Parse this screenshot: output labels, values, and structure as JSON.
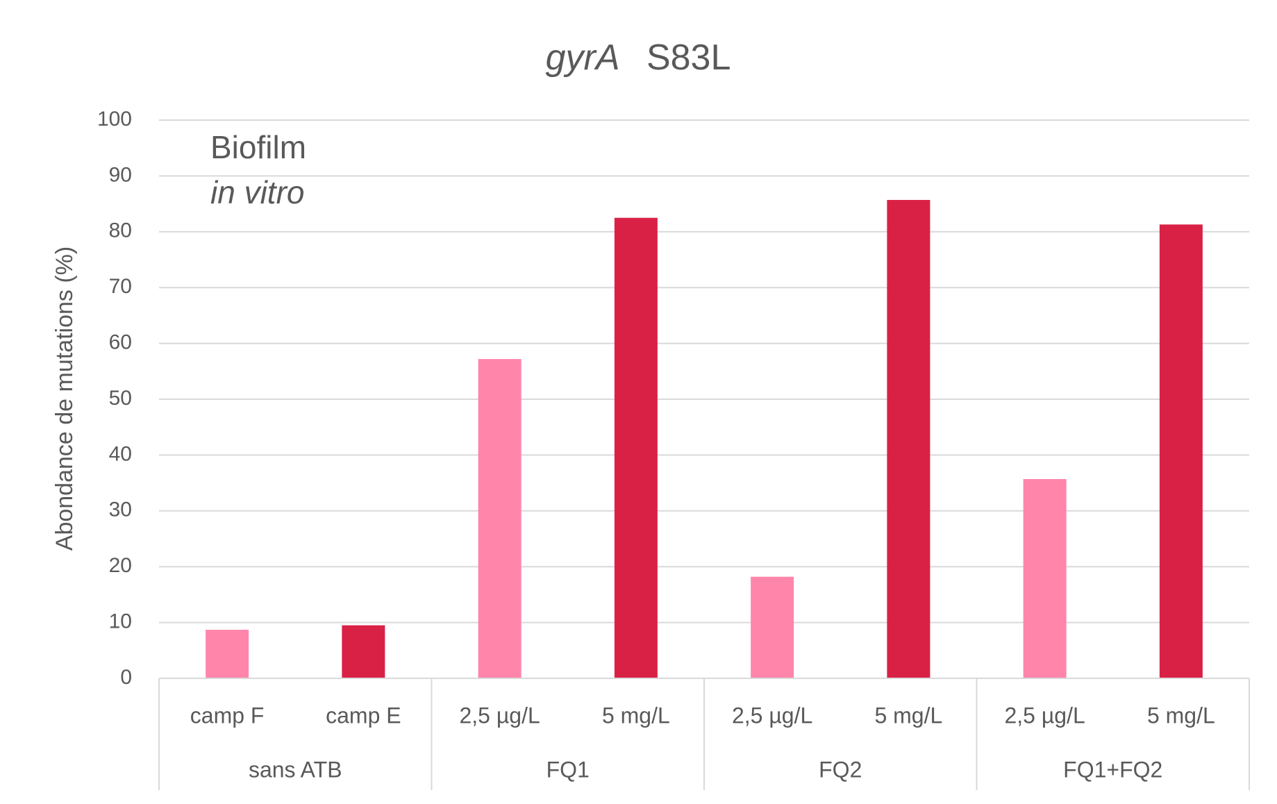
{
  "chart_data": {
    "type": "bar",
    "title": {
      "gene": "gyrA",
      "mutation": "S83L"
    },
    "ylabel": "Abondance de mutations (%)",
    "xlabel": "",
    "ylim": [
      0,
      100
    ],
    "yticks": [
      0,
      10,
      20,
      30,
      40,
      50,
      60,
      70,
      80,
      90,
      100
    ],
    "grid": true,
    "annotation": {
      "line1": "Biofilm",
      "line2": "in vitro"
    },
    "groups": [
      {
        "label": "sans ATB",
        "categories": [
          "camp F",
          "camp E"
        ]
      },
      {
        "label": "FQ1",
        "categories": [
          "2,5 µg/L",
          "5 mg/L"
        ]
      },
      {
        "label": "FQ2",
        "categories": [
          "2,5 µg/L",
          "5 mg/L"
        ]
      },
      {
        "label": "FQ1+FQ2",
        "categories": [
          "2,5 µg/L",
          "5 mg/L"
        ]
      }
    ],
    "categories": [
      "camp F",
      "camp E",
      "2,5 µg/L",
      "5 mg/L",
      "2,5 µg/L",
      "5 mg/L",
      "2,5 µg/L",
      "5 mg/L"
    ],
    "values": [
      8.7,
      9.5,
      57.2,
      82.5,
      18.2,
      85.7,
      35.7,
      81.3
    ],
    "colors": [
      "#ff85ab",
      "#d92146",
      "#ff85ab",
      "#d92146",
      "#ff85ab",
      "#d92146",
      "#ff85ab",
      "#d92146"
    ]
  }
}
